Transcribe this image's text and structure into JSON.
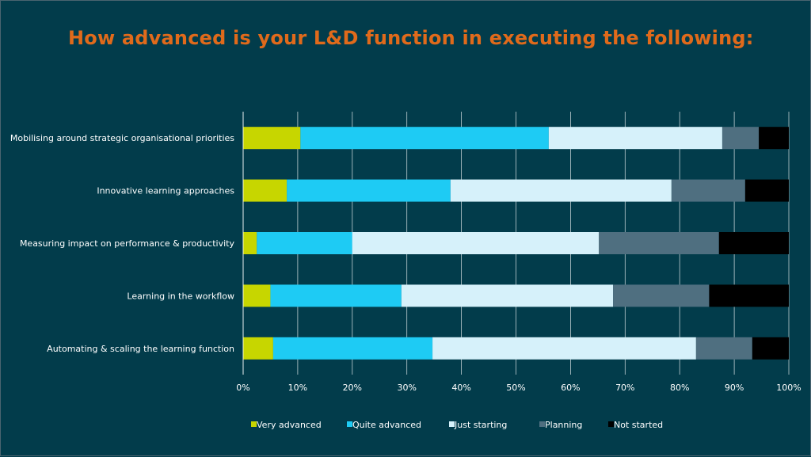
{
  "title": "How advanced is your L&D function in executing the following:",
  "colors": {
    "background": "#023c4b",
    "title": "#e06a1b",
    "grid": "#ffffff",
    "text": "#ffffff"
  },
  "chart_data": {
    "type": "bar",
    "orientation": "horizontal",
    "stacked": "percent",
    "categories": [
      "Mobilising around strategic organisational priorities",
      "Innovative learning approaches",
      "Measuring impact on performance & productivity",
      "Learning in the workflow",
      "Automating & scaling the learning function"
    ],
    "series": [
      {
        "name": "Very advanced",
        "color": "#c7d600",
        "values": [
          10.5,
          8,
          2.5,
          5,
          5.5
        ]
      },
      {
        "name": "Quite advanced",
        "color": "#1ecbf4",
        "values": [
          45.5,
          30,
          17.5,
          24,
          29.2
        ]
      },
      {
        "name": "Just starting",
        "color": "#d6f1fa",
        "values": [
          31.8,
          40.5,
          45.2,
          38.8,
          48.3
        ]
      },
      {
        "name": "Planning",
        "color": "#4f6f80",
        "values": [
          6.7,
          13.5,
          22,
          17.6,
          10.3
        ]
      },
      {
        "name": "Not started",
        "color": "#000000",
        "values": [
          5.5,
          8,
          12.8,
          14.6,
          6.7
        ]
      }
    ],
    "xticks": [
      "0%",
      "10%",
      "20%",
      "30%",
      "40%",
      "50%",
      "60%",
      "70%",
      "80%",
      "90%",
      "100%"
    ],
    "xlim": [
      0,
      100
    ],
    "grid": true,
    "legend": "bottom"
  }
}
